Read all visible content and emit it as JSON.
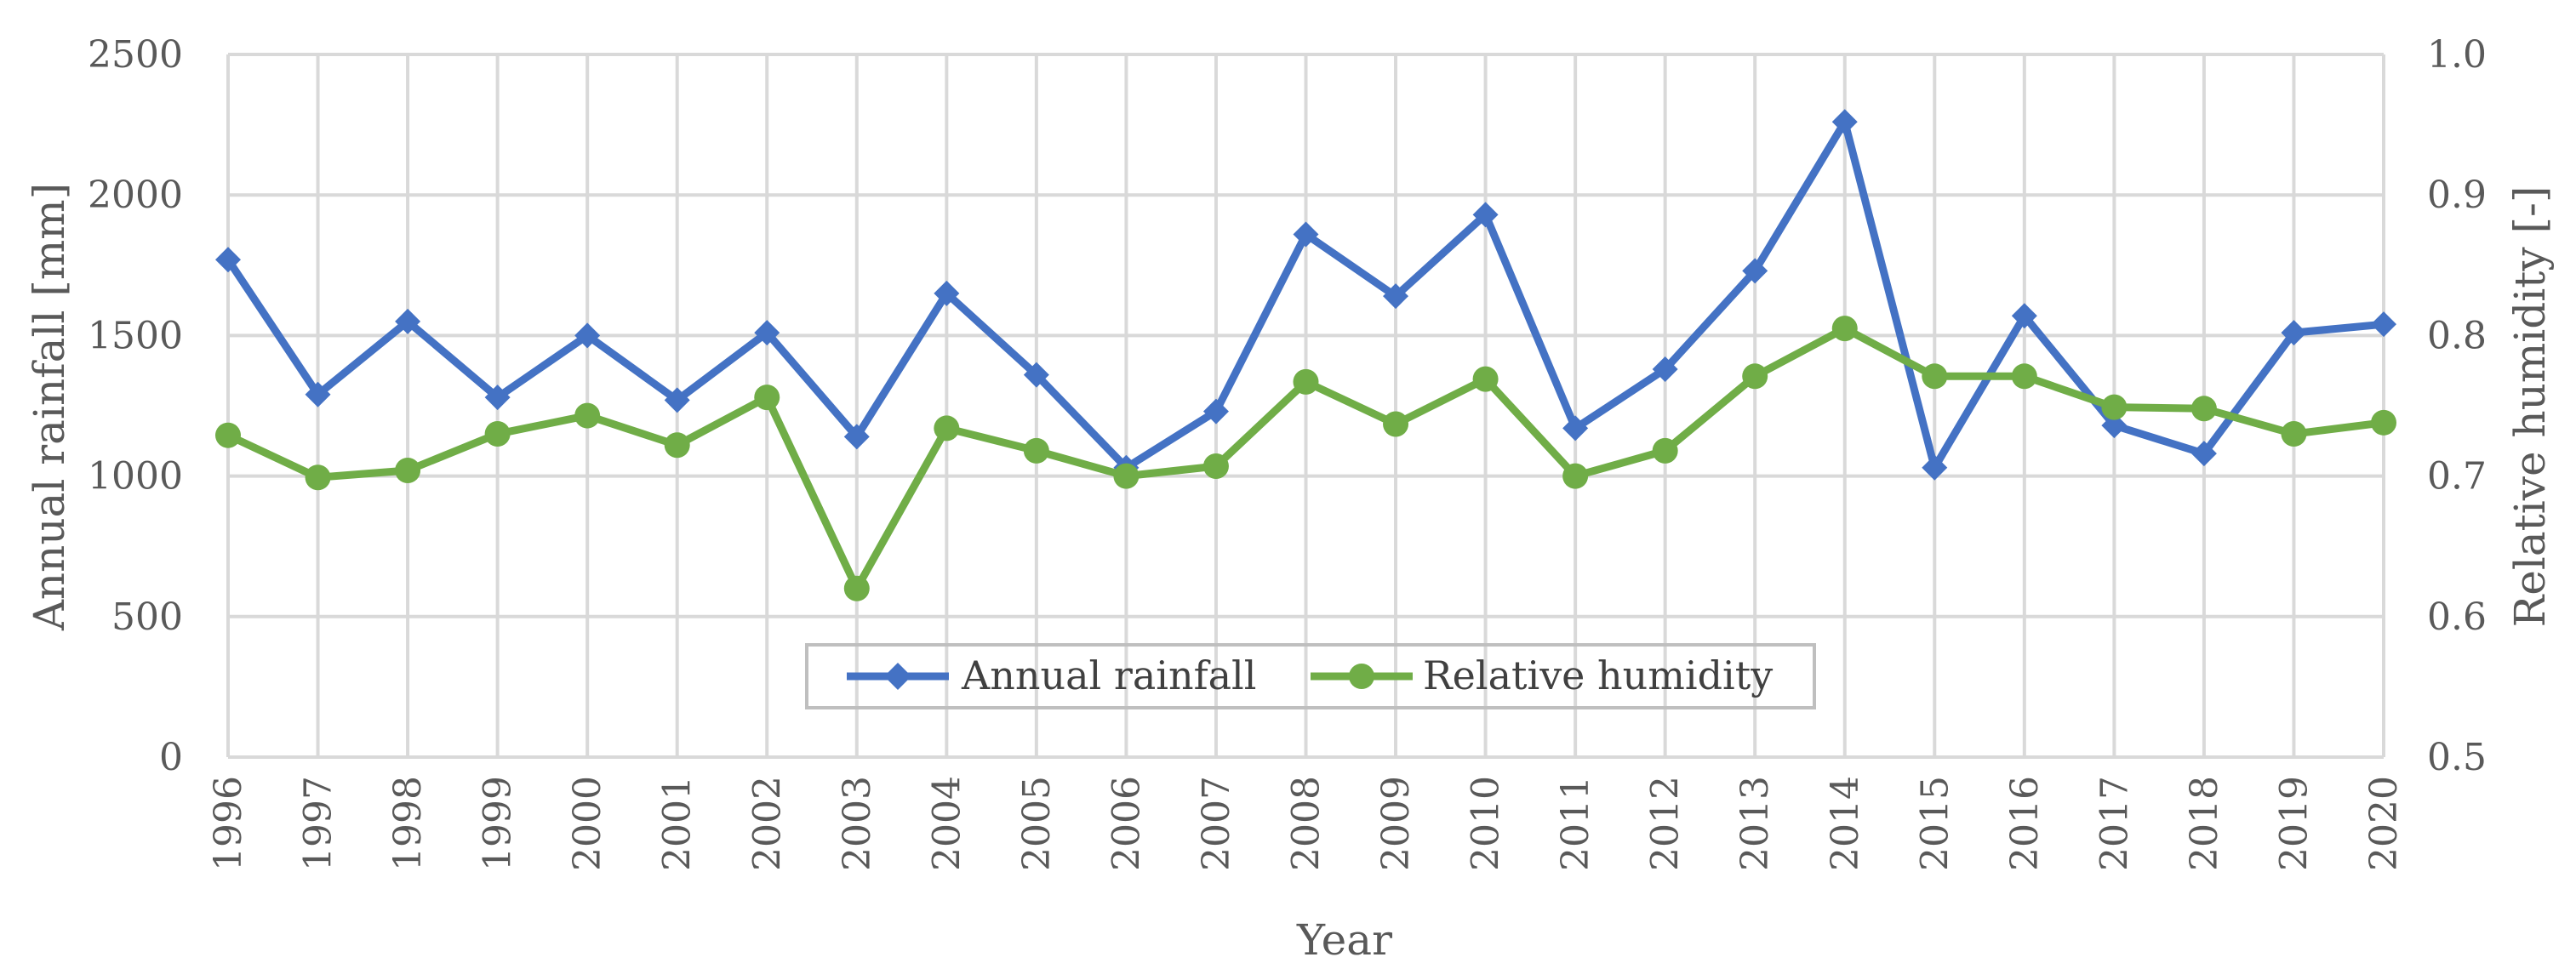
{
  "chart_data": {
    "type": "line",
    "title": "",
    "xlabel": "Year",
    "ylabel": "Annual rainfall [mm]",
    "y2label": "Relative humidity [-]",
    "categories": [
      "1996",
      "1997",
      "1998",
      "1999",
      "2000",
      "2001",
      "2002",
      "2003",
      "2004",
      "2005",
      "2006",
      "2007",
      "2008",
      "2009",
      "2010",
      "2011",
      "2012",
      "2013",
      "2014",
      "2015",
      "2016",
      "2017",
      "2018",
      "2019",
      "2020"
    ],
    "ylim": [
      0,
      2500
    ],
    "y2lim": [
      0.5,
      1.0
    ],
    "yticks": [
      "0",
      "500",
      "1000",
      "1500",
      "2000",
      "2500"
    ],
    "y2ticks": [
      "0.5",
      "0.6",
      "0.7",
      "0.8",
      "0.9",
      "1.0"
    ],
    "grid": true,
    "legend_position": "bottom-center",
    "series": [
      {
        "name": "Annual rainfall",
        "axis": "left",
        "color": "#4472c4",
        "marker": "diamond",
        "values": [
          1770,
          1290,
          1550,
          1280,
          1500,
          1270,
          1510,
          1140,
          1650,
          1360,
          1030,
          1230,
          1860,
          1640,
          1930,
          1170,
          1380,
          1730,
          2260,
          1030,
          1570,
          1180,
          1080,
          1510,
          1540
        ]
      },
      {
        "name": "Relative humidity",
        "axis": "right",
        "color": "#70ad47",
        "marker": "circle",
        "values": [
          0.729,
          0.699,
          0.704,
          0.73,
          0.743,
          0.722,
          0.756,
          0.62,
          0.734,
          0.718,
          0.7,
          0.707,
          0.767,
          0.737,
          0.769,
          0.7,
          0.718,
          0.771,
          0.805,
          0.771,
          0.771,
          0.749,
          0.748,
          0.73,
          0.738
        ]
      }
    ]
  }
}
